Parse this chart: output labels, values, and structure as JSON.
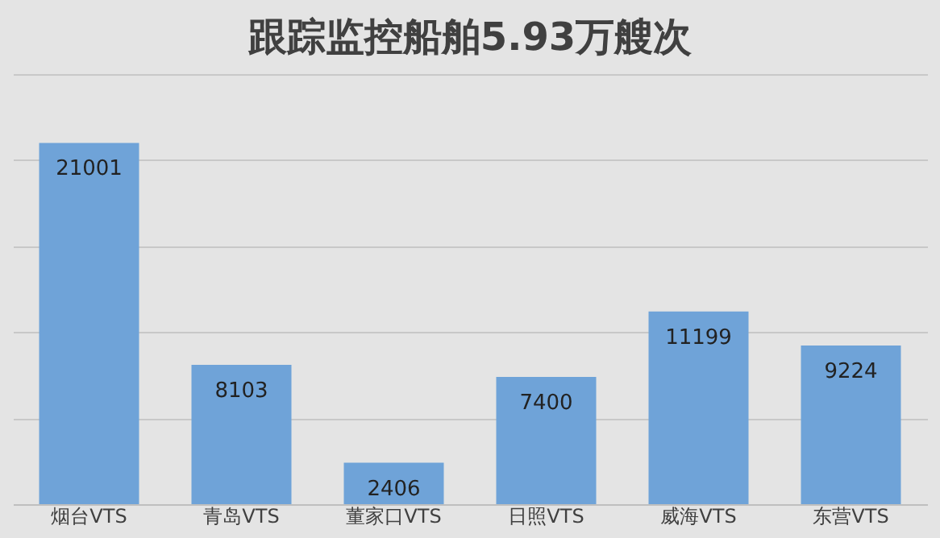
{
  "chart_data": {
    "type": "bar",
    "title": "跟踪监控船舶5.93万艘次",
    "categories": [
      "烟台VTS",
      "青岛VTS",
      "董家口VTS",
      "日照VTS",
      "威海VTS",
      "东营VTS"
    ],
    "values": [
      21001,
      8103,
      2406,
      7400,
      11199,
      9224
    ],
    "color": "#6fa3d8",
    "ylim": [
      0,
      25000
    ],
    "yticks": [
      {
        "value": 0,
        "label": null
      },
      {
        "value": 5000,
        "label": null
      },
      {
        "value": 10000,
        "label": null
      },
      {
        "value": 15000,
        "label": null
      },
      {
        "value": 20000,
        "label": null
      },
      {
        "value": 25000,
        "label": null
      }
    ],
    "grid": "y",
    "tick_labels": "x",
    "data_labels": true
  }
}
